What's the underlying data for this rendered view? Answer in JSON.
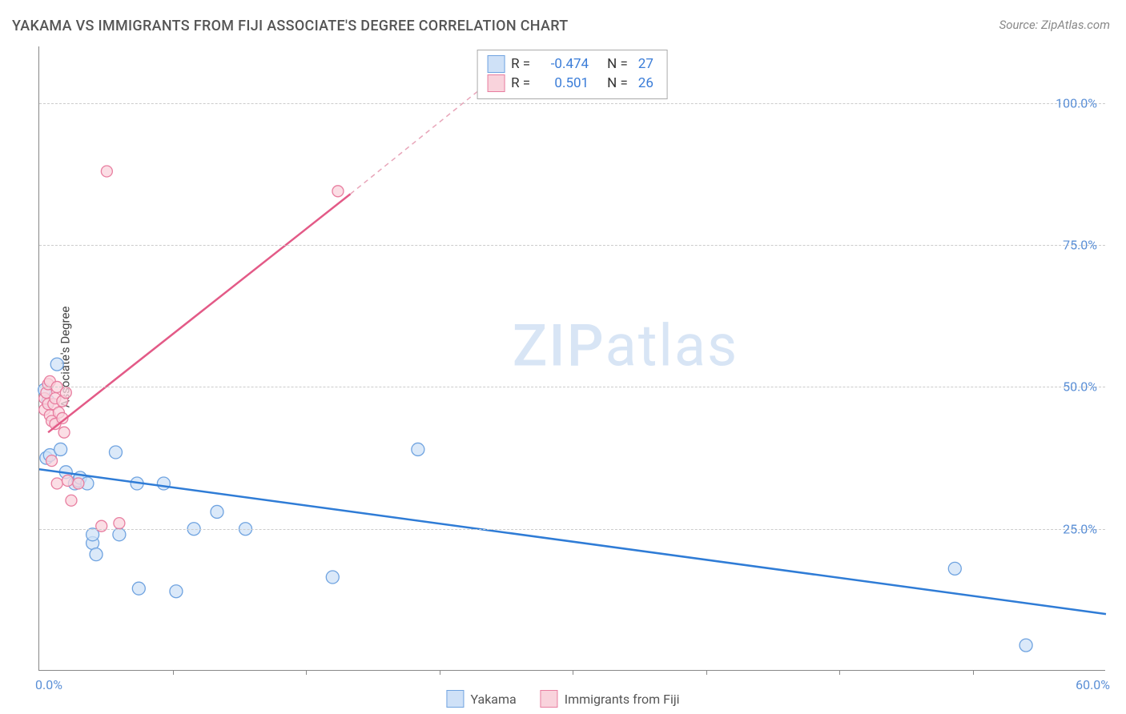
{
  "title": "YAKAMA VS IMMIGRANTS FROM FIJI ASSOCIATE'S DEGREE CORRELATION CHART",
  "source_label": "Source: ZipAtlas.com",
  "y_axis_title": "Associate's Degree",
  "watermark_zip": "ZIP",
  "watermark_atlas": "atlas",
  "chart": {
    "type": "scatter",
    "xlim": [
      0,
      60
    ],
    "ylim": [
      0,
      110
    ],
    "x_ticks": [
      0,
      60
    ],
    "x_tick_labels": [
      "0.0%",
      "60.0%"
    ],
    "x_minor_ticks": [
      7.5,
      15,
      22.5,
      30,
      37.5,
      45,
      52.5
    ],
    "y_gridlines": [
      25,
      50,
      75,
      100
    ],
    "y_tick_labels": [
      "25.0%",
      "50.0%",
      "75.0%",
      "100.0%"
    ],
    "background_color": "#ffffff",
    "grid_color": "#cccccc",
    "axis_color": "#888888",
    "series": [
      {
        "name": "Yakama",
        "color_fill": "#cfe1f7",
        "color_stroke": "#6fa3e0",
        "marker_size": 8,
        "points": [
          [
            0.3,
            49.5
          ],
          [
            0.5,
            47.5
          ],
          [
            0.4,
            37.5
          ],
          [
            0.6,
            38.0
          ],
          [
            1.0,
            54.0
          ],
          [
            1.2,
            39.0
          ],
          [
            1.5,
            35.0
          ],
          [
            2.0,
            33.0
          ],
          [
            2.2,
            33.5
          ],
          [
            2.3,
            34.0
          ],
          [
            2.7,
            33.0
          ],
          [
            3.0,
            22.5
          ],
          [
            3.0,
            24.0
          ],
          [
            3.2,
            20.5
          ],
          [
            4.3,
            38.5
          ],
          [
            4.5,
            24.0
          ],
          [
            5.5,
            33.0
          ],
          [
            5.6,
            14.5
          ],
          [
            7.0,
            33.0
          ],
          [
            7.7,
            14.0
          ],
          [
            8.7,
            25.0
          ],
          [
            10.0,
            28.0
          ],
          [
            11.6,
            25.0
          ],
          [
            16.5,
            16.5
          ],
          [
            21.3,
            39.0
          ],
          [
            51.5,
            18.0
          ],
          [
            55.5,
            4.5
          ]
        ],
        "regression": {
          "x1": 0,
          "y1": 35.5,
          "x2": 60,
          "y2": 10.0,
          "color": "#2f7cd6",
          "width": 2.5
        }
      },
      {
        "name": "Immigrants from Fiji",
        "color_fill": "#f9d3dc",
        "color_stroke": "#e87ea0",
        "marker_size": 7,
        "points": [
          [
            0.3,
            48.0
          ],
          [
            0.3,
            46.0
          ],
          [
            0.4,
            49.0
          ],
          [
            0.5,
            47.0
          ],
          [
            0.5,
            50.5
          ],
          [
            0.6,
            45.0
          ],
          [
            0.6,
            51.0
          ],
          [
            0.7,
            44.0
          ],
          [
            0.7,
            37.0
          ],
          [
            0.8,
            47.0
          ],
          [
            0.9,
            43.5
          ],
          [
            0.9,
            48.0
          ],
          [
            1.0,
            50.0
          ],
          [
            1.0,
            33.0
          ],
          [
            1.1,
            45.5
          ],
          [
            1.3,
            47.5
          ],
          [
            1.3,
            44.5
          ],
          [
            1.4,
            42.0
          ],
          [
            1.5,
            49.0
          ],
          [
            1.6,
            33.5
          ],
          [
            1.8,
            30.0
          ],
          [
            2.2,
            33.0
          ],
          [
            3.5,
            25.5
          ],
          [
            4.5,
            26.0
          ],
          [
            3.8,
            88.0
          ],
          [
            16.8,
            84.5
          ]
        ],
        "regression_solid": {
          "x1": 0.5,
          "y1": 42.0,
          "x2": 17.5,
          "y2": 84.0,
          "color": "#e35a87",
          "width": 2.5
        },
        "regression_dashed": {
          "x1": 17.5,
          "y1": 84.0,
          "x2": 27.0,
          "y2": 108.0,
          "color": "#e8a5b9",
          "width": 1.5,
          "dash": "6,5"
        }
      }
    ]
  },
  "stats_legend": {
    "rows": [
      {
        "swatch_fill": "#cfe1f7",
        "swatch_stroke": "#6fa3e0",
        "r_label": "R =",
        "r_value": "-0.474",
        "n_label": "N =",
        "n_value": "27"
      },
      {
        "swatch_fill": "#f9d3dc",
        "swatch_stroke": "#e87ea0",
        "r_label": "R =",
        "r_value": "0.501",
        "n_label": "N =",
        "n_value": "26"
      }
    ]
  },
  "bottom_legend": {
    "items": [
      {
        "swatch_fill": "#cfe1f7",
        "swatch_stroke": "#6fa3e0",
        "label": "Yakama"
      },
      {
        "swatch_fill": "#f9d3dc",
        "swatch_stroke": "#e87ea0",
        "label": "Immigrants from Fiji"
      }
    ]
  }
}
